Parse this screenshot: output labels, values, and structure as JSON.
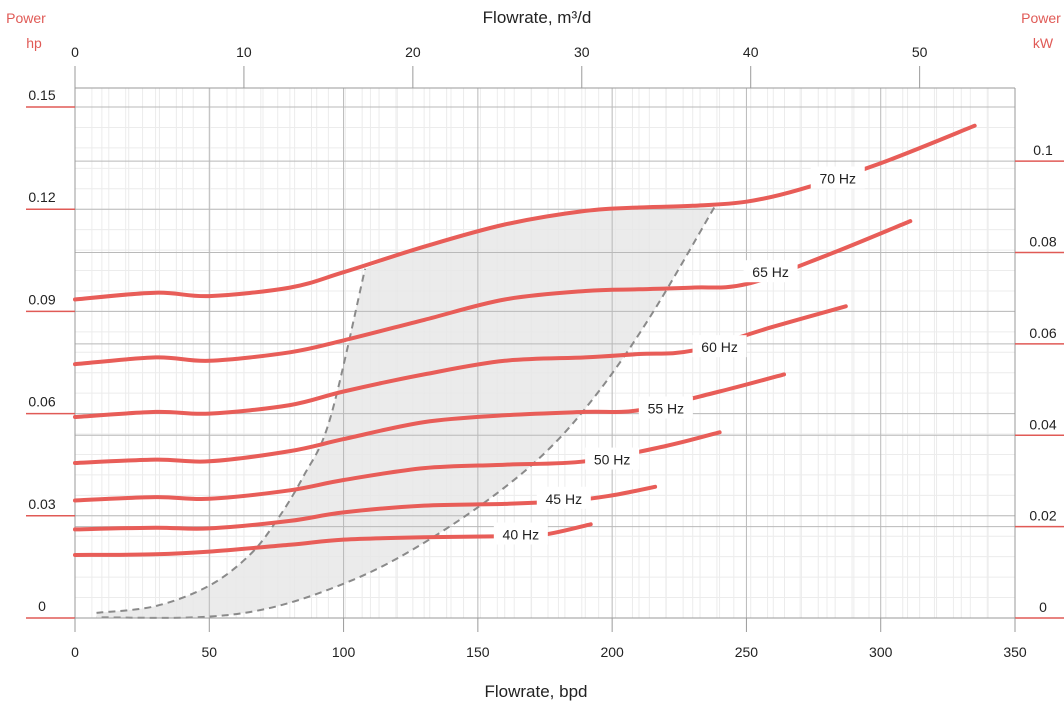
{
  "chart_data": {
    "type": "line",
    "title": "",
    "xlabel": "Flowrate, bpd",
    "x2label": "Flowrate, m³/d",
    "y_left": {
      "name": "Power",
      "unit": "hp",
      "ticks": [
        "0",
        "0.03",
        "0.06",
        "0.09",
        "0.12",
        "0.15"
      ],
      "range": [
        0,
        0.15
      ]
    },
    "y_right": {
      "name": "Power",
      "unit": "kW",
      "ticks": [
        "0",
        "0.02",
        "0.04",
        "0.06",
        "0.08",
        "0.1"
      ],
      "max_visible": 0.112
    },
    "x_ticks": [
      "0",
      "50",
      "100",
      "150",
      "200",
      "250",
      "300",
      "350"
    ],
    "x2_ticks": [
      "0",
      "10",
      "20",
      "30",
      "40",
      "50"
    ],
    "xlim": [
      0,
      350
    ],
    "ylim": [
      0,
      0.15
    ],
    "grid": true,
    "colors": {
      "curve": "#e85d58",
      "axis_accent": "#e05a56",
      "grid_major": "#b9b9b9",
      "grid_minor": "#ececec",
      "envelope_fill": "#e8e8e8",
      "envelope_border": "#8a8a8a"
    },
    "series": [
      {
        "name": "70 Hz",
        "label_x": 284,
        "label_y": 0.129,
        "x": [
          0,
          30,
          50,
          80,
          100,
          130,
          160,
          190,
          210,
          230,
          250,
          270,
          300,
          335
        ],
        "y": [
          0.0935,
          0.0955,
          0.0945,
          0.097,
          0.1015,
          0.109,
          0.1155,
          0.1195,
          0.1205,
          0.121,
          0.1222,
          0.1258,
          0.1335,
          0.1445
        ]
      },
      {
        "name": "65 Hz",
        "label_x": 259,
        "label_y": 0.1015,
        "x": [
          0,
          30,
          50,
          80,
          100,
          130,
          160,
          190,
          210,
          230,
          250,
          280,
          311
        ],
        "y": [
          0.0745,
          0.0765,
          0.0755,
          0.078,
          0.0815,
          0.0875,
          0.0935,
          0.096,
          0.0965,
          0.097,
          0.098,
          0.1065,
          0.1165
        ]
      },
      {
        "name": "60 Hz",
        "label_x": 240,
        "label_y": 0.0795,
        "x": [
          0,
          30,
          50,
          80,
          100,
          130,
          160,
          190,
          210,
          230,
          260,
          287
        ],
        "y": [
          0.059,
          0.0605,
          0.06,
          0.0625,
          0.0665,
          0.0715,
          0.0755,
          0.0765,
          0.0775,
          0.0785,
          0.0855,
          0.0915
        ]
      },
      {
        "name": "55 Hz",
        "label_x": 220,
        "label_y": 0.0615,
        "x": [
          0,
          30,
          50,
          80,
          100,
          130,
          160,
          190,
          210,
          240,
          264
        ],
        "y": [
          0.0455,
          0.0465,
          0.046,
          0.049,
          0.0525,
          0.0575,
          0.0595,
          0.0605,
          0.061,
          0.0665,
          0.0715
        ]
      },
      {
        "name": "50 Hz",
        "label_x": 200,
        "label_y": 0.0465,
        "x": [
          0,
          30,
          50,
          80,
          100,
          130,
          160,
          190,
          220,
          240
        ],
        "y": [
          0.0345,
          0.0355,
          0.035,
          0.0375,
          0.0405,
          0.044,
          0.045,
          0.046,
          0.0505,
          0.0545
        ]
      },
      {
        "name": "45 Hz",
        "label_x": 182,
        "label_y": 0.035,
        "x": [
          0,
          30,
          50,
          80,
          100,
          130,
          160,
          185,
          200,
          216
        ],
        "y": [
          0.026,
          0.0265,
          0.0263,
          0.0285,
          0.031,
          0.033,
          0.0335,
          0.0345,
          0.036,
          0.0385
        ]
      },
      {
        "name": "40 Hz",
        "label_x": 166,
        "label_y": 0.0245,
        "x": [
          0,
          30,
          50,
          80,
          100,
          130,
          160,
          175,
          192
        ],
        "y": [
          0.0185,
          0.0187,
          0.0195,
          0.0215,
          0.023,
          0.0237,
          0.024,
          0.0245,
          0.0275
        ]
      }
    ],
    "operating_range": {
      "upper_x": [
        8,
        30,
        50,
        65,
        75,
        85,
        95,
        108
      ],
      "upper_y": [
        0.0015,
        0.0035,
        0.0095,
        0.0185,
        0.0285,
        0.0415,
        0.0585,
        0.1025
      ],
      "top_x": [
        108,
        130,
        160,
        190,
        210,
        238
      ],
      "top_y": [
        0.1025,
        0.109,
        0.1155,
        0.1195,
        0.1205,
        0.1205
      ],
      "lower_x": [
        238,
        215,
        195,
        175,
        150,
        120,
        95,
        70,
        45,
        8
      ],
      "lower_y": [
        0.1205,
        0.0895,
        0.0665,
        0.0485,
        0.0325,
        0.0175,
        0.0085,
        0.0025,
        0.0002,
        0.0002
      ]
    }
  }
}
